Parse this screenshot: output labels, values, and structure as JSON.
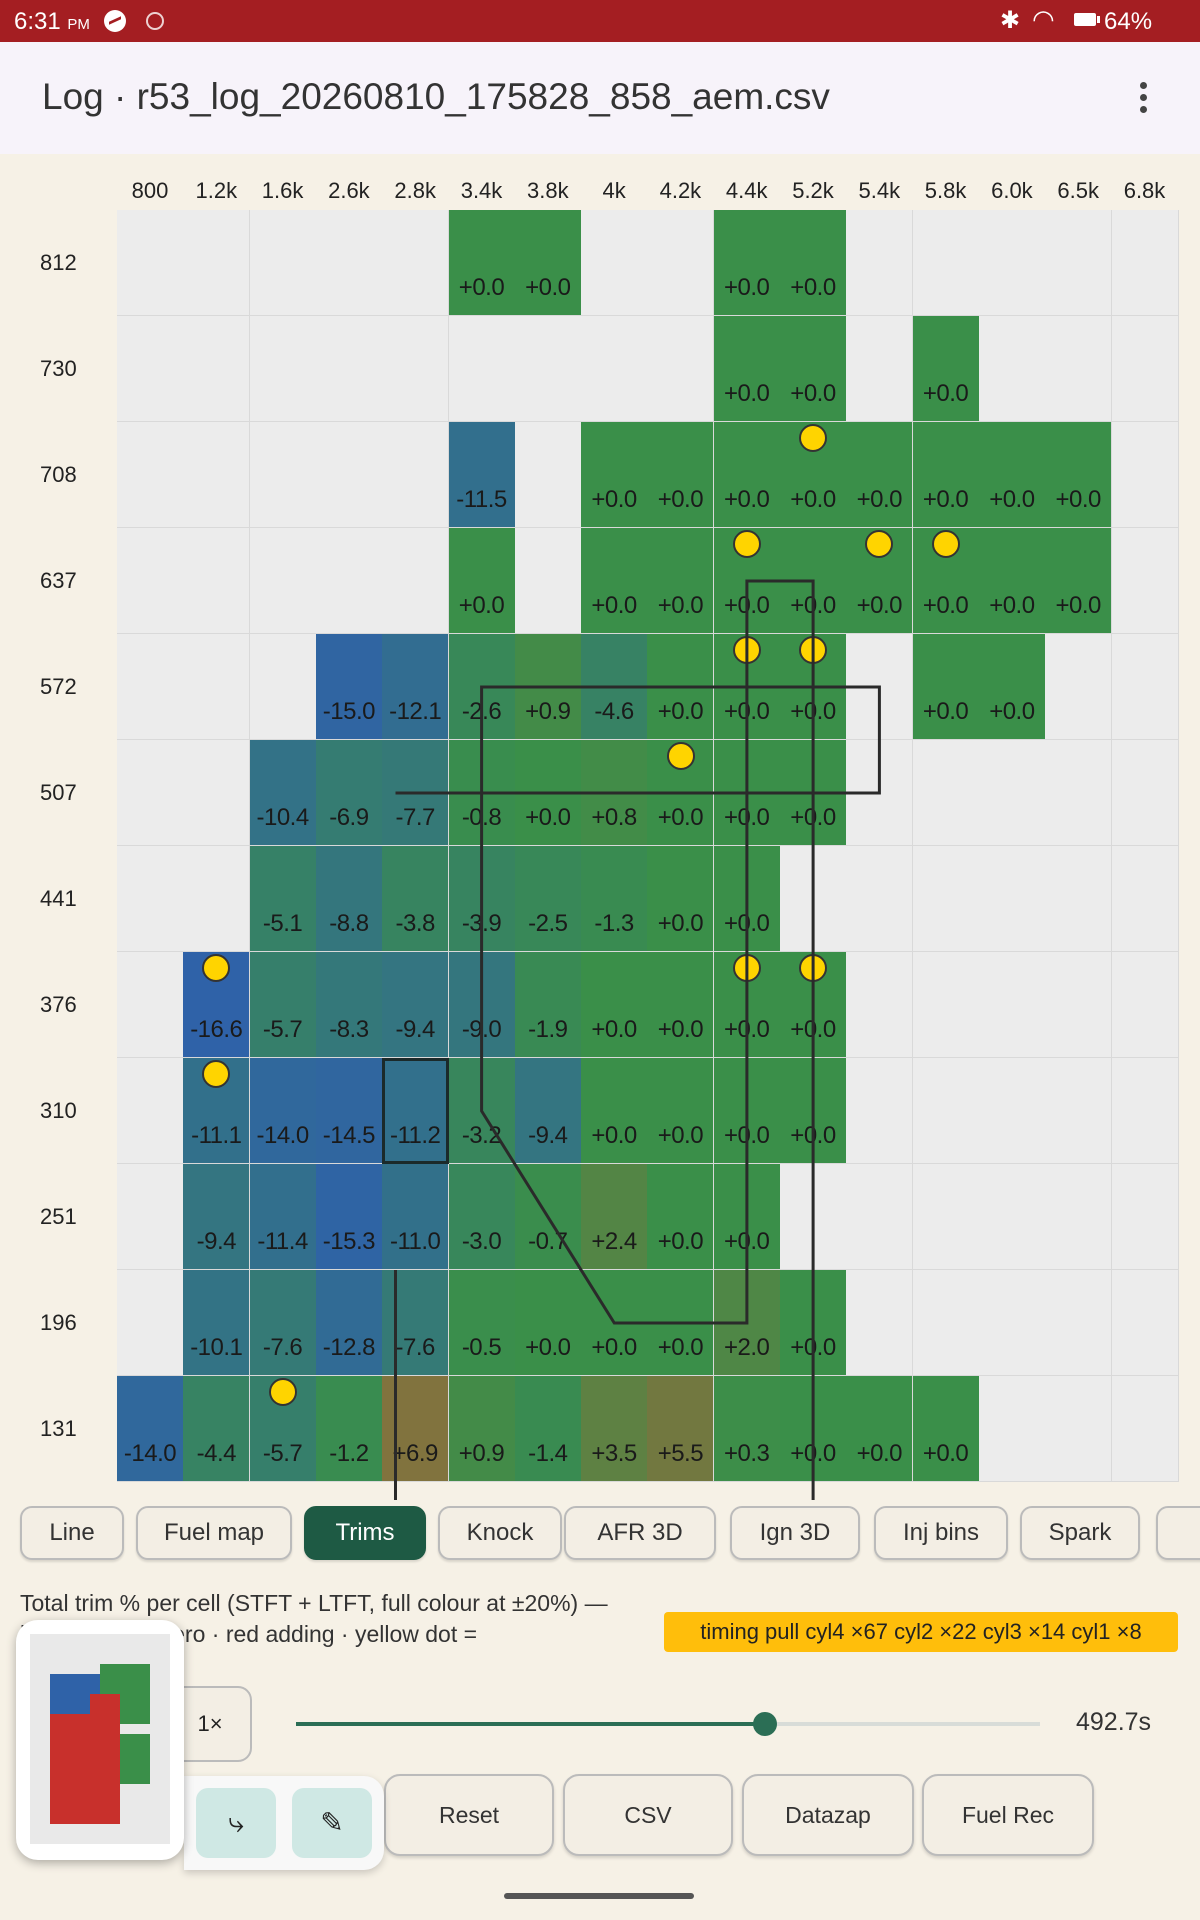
{
  "status_bar": {
    "time": "6:31",
    "ampm": "PM",
    "battery": "64%"
  },
  "app_bar": {
    "title": "Log · r53_log_20260810_175828_858_aem.csv"
  },
  "grid": {
    "columns": [
      "800",
      "1.2k",
      "1.6k",
      "2.6k",
      "2.8k",
      "3.4k",
      "3.8k",
      "4k",
      "4.2k",
      "4.4k",
      "5.2k",
      "5.4k",
      "5.8k",
      "6.0k",
      "6.5k",
      "6.8k"
    ],
    "rows": [
      "812",
      "730",
      "708",
      "637",
      "572",
      "507",
      "441",
      "376",
      "310",
      "251",
      "196",
      "131"
    ],
    "cells": [
      [
        null,
        null,
        null,
        null,
        null,
        "+0.0",
        "+0.0",
        null,
        null,
        "+0.0",
        "+0.0",
        null,
        null,
        null,
        null,
        null
      ],
      [
        null,
        null,
        null,
        null,
        null,
        null,
        null,
        null,
        null,
        "+0.0",
        "+0.0",
        null,
        "+0.0",
        null,
        null,
        null
      ],
      [
        null,
        null,
        null,
        null,
        null,
        "-11.5",
        null,
        "+0.0",
        "+0.0",
        "+0.0",
        "+0.0",
        "+0.0",
        "+0.0",
        "+0.0",
        "+0.0",
        null
      ],
      [
        null,
        null,
        null,
        null,
        null,
        "+0.0",
        null,
        "+0.0",
        "+0.0",
        "+0.0",
        "+0.0",
        "+0.0",
        "+0.0",
        "+0.0",
        "+0.0",
        null
      ],
      [
        null,
        null,
        null,
        "-15.0",
        "-12.1",
        "-2.6",
        "+0.9",
        "-4.6",
        "+0.0",
        "+0.0",
        "+0.0",
        null,
        "+0.0",
        "+0.0",
        null,
        null
      ],
      [
        null,
        null,
        "-10.4",
        "-6.9",
        "-7.7",
        "-0.8",
        "+0.0",
        "+0.8",
        "+0.0",
        "+0.0",
        "+0.0",
        null,
        null,
        null,
        null,
        null
      ],
      [
        null,
        null,
        "-5.1",
        "-8.8",
        "-3.8",
        "-3.9",
        "-2.5",
        "-1.3",
        "+0.0",
        "+0.0",
        null,
        null,
        null,
        null,
        null,
        null
      ],
      [
        null,
        "-16.6",
        "-5.7",
        "-8.3",
        "-9.4",
        "-9.0",
        "-1.9",
        "+0.0",
        "+0.0",
        "+0.0",
        "+0.0",
        null,
        null,
        null,
        null,
        null
      ],
      [
        null,
        "-11.1",
        "-14.0",
        "-14.5",
        "-11.2",
        "-3.2",
        "-9.4",
        "+0.0",
        "+0.0",
        "+0.0",
        "+0.0",
        null,
        null,
        null,
        null,
        null
      ],
      [
        null,
        "-9.4",
        "-11.4",
        "-15.3",
        "-11.0",
        "-3.0",
        "-0.7",
        "+2.4",
        "+0.0",
        "+0.0",
        null,
        null,
        null,
        null,
        null,
        null
      ],
      [
        null,
        "-10.1",
        "-7.6",
        "-12.8",
        "-7.6",
        "-0.5",
        "+0.0",
        "+0.0",
        "+0.0",
        "+2.0",
        "+0.0",
        null,
        null,
        null,
        null,
        null
      ],
      [
        "-14.0",
        "-4.4",
        "-5.7",
        "-1.2",
        "+6.9",
        "+0.9",
        "-1.4",
        "+3.5",
        "+5.5",
        "+0.3",
        "+0.0",
        "+0.0",
        "+0.0",
        null,
        null,
        null
      ]
    ],
    "knock_dots": [
      [
        2,
        10
      ],
      [
        3,
        9
      ],
      [
        3,
        11
      ],
      [
        3,
        12
      ],
      [
        4,
        9
      ],
      [
        4,
        10
      ],
      [
        5,
        8
      ],
      [
        7,
        1
      ],
      [
        7,
        9
      ],
      [
        7,
        10
      ],
      [
        8,
        1
      ],
      [
        11,
        2
      ]
    ],
    "selected_cell": [
      8,
      4
    ],
    "trace_points": [
      [
        4.2,
        5.5
      ],
      [
        11.5,
        5.5
      ],
      [
        11.5,
        4.5
      ],
      [
        5.5,
        4.5
      ],
      [
        5.5,
        8.5
      ],
      [
        7.5,
        10.5
      ],
      [
        9.5,
        10.5
      ],
      [
        9.5,
        3.5
      ],
      [
        10.5,
        3.5
      ],
      [
        10.5,
        12.5
      ],
      [
        8.5,
        12.5
      ],
      [
        4.2,
        12.5
      ],
      [
        4.2,
        10
      ]
    ]
  },
  "tabs": [
    {
      "label": "Line",
      "active": false
    },
    {
      "label": "Fuel map",
      "active": false
    },
    {
      "label": "Trims",
      "active": true
    },
    {
      "label": "Knock",
      "active": false
    },
    {
      "label": "AFR 3D",
      "active": false
    },
    {
      "label": "Ign 3D",
      "active": false
    },
    {
      "label": "Inj bins",
      "active": false
    },
    {
      "label": "Spark",
      "active": false
    },
    {
      "label": "",
      "active": false
    }
  ],
  "legend": {
    "line1": "Total trim % per cell (STFT + LTFT, full colour at ±20%) —",
    "line2": "bl            uel · green zero · red adding · yellow dot ="
  },
  "badge": "timing pull cyl4 ×67  cyl2 ×22  cyl3 ×14  cyl1 ×8",
  "playback": {
    "speed": "1×",
    "time": "492.7s",
    "progress": 0.63
  },
  "actions": [
    "Reset",
    "CSV",
    "Datazap",
    "Fuel Rec"
  ],
  "colors": {
    "status_bar": "#a41e22",
    "accent": "#1e5a44",
    "badge": "#ffbe0b",
    "zero": "#3a8f49",
    "negative": "#2f62a8",
    "positive": "#a0612a"
  }
}
